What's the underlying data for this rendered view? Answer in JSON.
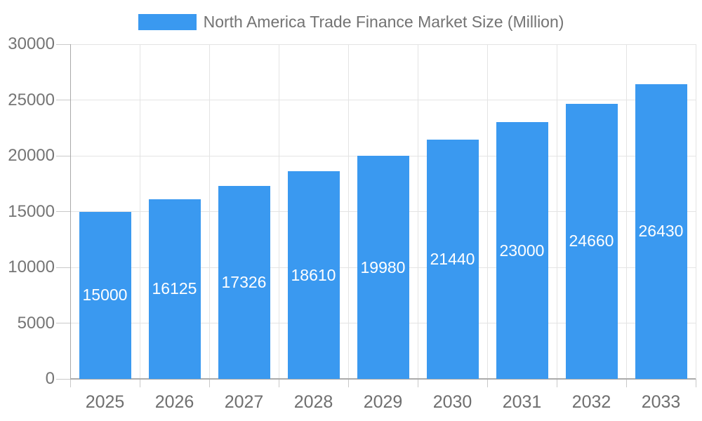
{
  "legend": {
    "label": "North America Trade Finance Market Size (Million)",
    "swatch_color": "#3A99F0"
  },
  "chart_data": {
    "type": "bar",
    "title": "North America Trade Finance Market Size (Million)",
    "categories": [
      "2025",
      "2026",
      "2027",
      "2028",
      "2029",
      "2030",
      "2031",
      "2032",
      "2033"
    ],
    "values": [
      15000,
      16125,
      17326,
      18610,
      19980,
      21440,
      23000,
      24660,
      26430
    ],
    "xlabel": "",
    "ylabel": "",
    "ylim": [
      0,
      30000
    ],
    "yticks": [
      0,
      5000,
      10000,
      15000,
      20000,
      25000,
      30000
    ],
    "grid": true,
    "legend_position": "top",
    "bar_color": "#3A99F0",
    "data_label_color": "#FFFFFF",
    "axis_text_color": "#757575"
  }
}
